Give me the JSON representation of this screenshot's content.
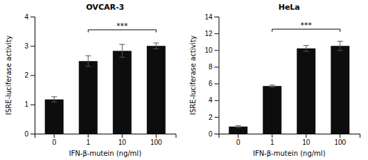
{
  "chart_data": [
    {
      "type": "bar",
      "title": "OVCAR-3",
      "categories": [
        "0",
        "1",
        "10",
        "100"
      ],
      "values": [
        1.17,
        2.48,
        2.83,
        3.0
      ],
      "errors": [
        0.09,
        0.18,
        0.22,
        0.1
      ],
      "xlabel": "IFN-β-mutein (ng/ml)",
      "ylabel": "ISRE-luciferase activity",
      "ylim": [
        0,
        4
      ],
      "yticks": [
        0,
        1,
        2,
        3,
        4
      ],
      "color": "#0d0d0d",
      "grid": false,
      "annotations": [
        {
          "text": "***",
          "from": "1",
          "to": "100",
          "y": 3.55
        }
      ]
    },
    {
      "type": "bar",
      "title": "HeLa",
      "categories": [
        "0",
        "1",
        "10",
        "100"
      ],
      "values": [
        0.85,
        5.7,
        10.2,
        10.5
      ],
      "errors": [
        0.1,
        0.12,
        0.35,
        0.55
      ],
      "xlabel": "IFN-β-mutein (ng/ml)",
      "ylabel": "ISRE-luciferase activity",
      "ylim": [
        0,
        14
      ],
      "yticks": [
        0,
        2,
        4,
        6,
        8,
        10,
        12,
        14
      ],
      "color": "#0d0d0d",
      "grid": false,
      "annotations": [
        {
          "text": "***",
          "from": "1",
          "to": "100",
          "y": 12.5
        }
      ]
    }
  ]
}
